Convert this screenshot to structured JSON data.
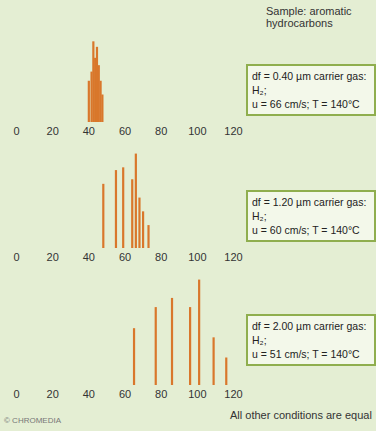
{
  "title": "Sample: aromatic hydrocarbons",
  "caption": "All other conditions are equal",
  "credit": "© CHROMEDIA",
  "chart_data": [
    {
      "type": "chromatogram",
      "annotation": [
        "df = 0.40 µm carrier gas: H₂;",
        "u = 66 cm/s; T = 140°C"
      ],
      "x": [
        40,
        41.5,
        42.5,
        43.5,
        44.5,
        45.5,
        46.5,
        47.5
      ],
      "values": [
        45,
        55,
        88,
        70,
        82,
        62,
        45,
        30
      ],
      "baseline": [
        0,
        65
      ],
      "xlim": [
        0,
        120
      ],
      "xticks": [
        0,
        20,
        40,
        60,
        80,
        100,
        120
      ],
      "ylim": [
        0,
        120
      ],
      "tick_labels": "x",
      "color": "#d9772b"
    },
    {
      "type": "chromatogram",
      "annotation": [
        "df = 1.20 µm carrier gas: H₂;",
        "u = 60 cm/s; T = 140°C"
      ],
      "x": [
        48,
        55,
        59,
        64,
        66,
        68,
        70,
        73
      ],
      "values": [
        70,
        85,
        88,
        75,
        103,
        55,
        40,
        25
      ],
      "baseline": [
        0,
        103
      ],
      "xlim": [
        0,
        120
      ],
      "xticks": [
        0,
        20,
        40,
        60,
        80,
        100,
        120
      ],
      "ylim": [
        0,
        120
      ],
      "tick_labels": "x",
      "color": "#d9772b"
    },
    {
      "type": "chromatogram",
      "annotation": [
        "df = 2.00 µm carrier gas: H₂;",
        "u = 51 cm/s; T = 140°C"
      ],
      "x": [
        65,
        77,
        86,
        96,
        101,
        109,
        116
      ],
      "values": [
        62,
        85,
        95,
        85,
        115,
        52,
        30
      ],
      "baseline": [
        0,
        119
      ],
      "xlim": [
        0,
        120
      ],
      "xticks": [
        0,
        20,
        40,
        60,
        80,
        100,
        120
      ],
      "ylim": [
        0,
        120
      ],
      "tick_labels": "x",
      "color": "#d9772b"
    }
  ]
}
